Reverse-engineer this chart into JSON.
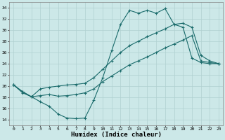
{
  "xlabel": "Humidex (Indice chaleur)",
  "xlim": [
    -0.5,
    23.5
  ],
  "ylim": [
    13,
    35
  ],
  "yticks": [
    14,
    16,
    18,
    20,
    22,
    24,
    26,
    28,
    30,
    32,
    34
  ],
  "xticks": [
    0,
    1,
    2,
    3,
    4,
    5,
    6,
    7,
    8,
    9,
    10,
    11,
    12,
    13,
    14,
    15,
    16,
    17,
    18,
    19,
    20,
    21,
    22,
    23
  ],
  "background_color": "#cce8e8",
  "grid_color": "#b0d0d0",
  "line_color": "#1a6b6b",
  "line1_y": [
    20.2,
    19.0,
    18.1,
    17.2,
    16.4,
    15.0,
    14.3,
    14.2,
    14.3,
    17.5,
    21.5,
    26.3,
    31.0,
    33.5,
    33.0,
    33.5,
    33.0,
    33.8,
    31.0,
    30.5,
    25.0,
    24.2,
    24.0,
    24.0
  ],
  "line2_y": [
    20.2,
    19.0,
    18.1,
    19.5,
    19.8,
    20.0,
    20.2,
    20.3,
    20.5,
    21.5,
    23.0,
    24.5,
    26.0,
    27.2,
    28.0,
    28.8,
    29.5,
    30.2,
    31.0,
    31.2,
    30.5,
    25.5,
    24.5,
    24.0
  ],
  "line3_y": [
    20.2,
    18.8,
    18.1,
    18.3,
    18.5,
    18.2,
    18.3,
    18.5,
    18.8,
    19.5,
    20.8,
    21.8,
    22.8,
    23.8,
    24.5,
    25.2,
    26.0,
    26.8,
    27.5,
    28.2,
    29.0,
    24.5,
    24.2,
    24.0
  ]
}
